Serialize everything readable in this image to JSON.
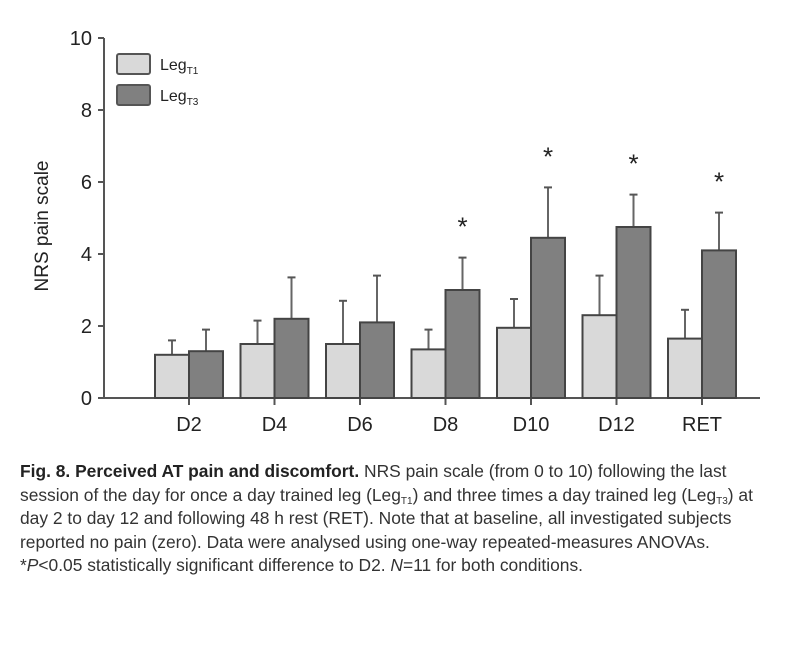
{
  "chart_data": {
    "type": "bar",
    "title": "",
    "xlabel": "",
    "ylabel": "NRS pain scale",
    "ylim": [
      0,
      10
    ],
    "yticks": [
      0,
      2,
      4,
      6,
      8,
      10
    ],
    "grid": false,
    "legend_position": "top-left",
    "categories": [
      "D2",
      "D4",
      "D6",
      "D8",
      "D10",
      "D12",
      "RET"
    ],
    "series": [
      {
        "name": "LegT1",
        "name_base": "Leg",
        "name_sub": "T1",
        "color": "#d9d9d9",
        "values": [
          1.2,
          1.5,
          1.5,
          1.35,
          1.95,
          2.3,
          1.65
        ],
        "error_upper": [
          1.6,
          2.15,
          2.7,
          1.9,
          2.75,
          3.4,
          2.45
        ]
      },
      {
        "name": "LegT3",
        "name_base": "Leg",
        "name_sub": "T3",
        "color": "#808080",
        "values": [
          1.3,
          2.2,
          2.1,
          3.0,
          4.45,
          4.75,
          4.1
        ],
        "error_upper": [
          1.9,
          3.35,
          3.4,
          3.9,
          5.85,
          5.65,
          5.15
        ]
      }
    ],
    "annotations": [
      {
        "category": "D8",
        "text": "*"
      },
      {
        "category": "D10",
        "text": "*"
      },
      {
        "category": "D12",
        "text": "*"
      },
      {
        "category": "RET",
        "text": "*"
      }
    ]
  },
  "caption": {
    "label": "Fig. 8. Perceived AT pain and discomfort.",
    "part1": " NRS pain scale (from 0 to 10) following the last session of the day for once a day trained leg (Leg",
    "sub1": "T1",
    "part2": ") and three times a day trained leg (Leg",
    "sub2": "T3",
    "part3": ") at day 2 to day 12 and following 48 h rest (RET). Note that at baseline, all investigated subjects reported no pain (zero). Data were analysed using one-way repeated-measures ANOVAs. *",
    "p_italic": "P",
    "part4": "<0.05 statistically significant difference to D2. ",
    "n_italic": "N",
    "part5": "=11 for both conditions."
  }
}
